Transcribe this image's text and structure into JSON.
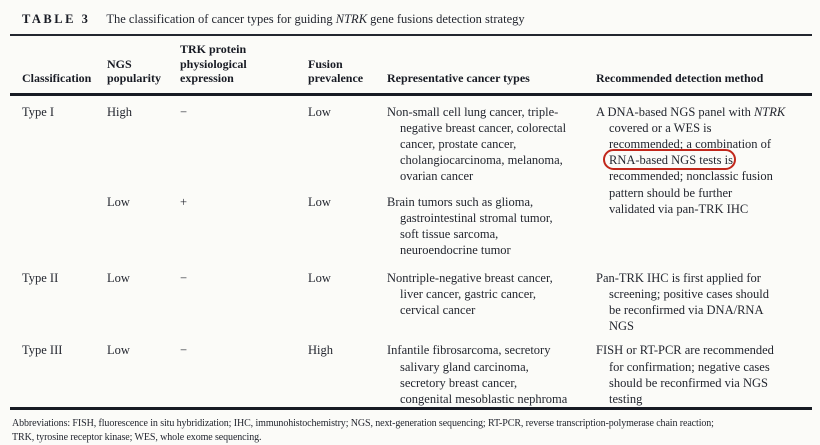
{
  "title": {
    "label": "TABLE 3",
    "prefix": "The classification of cancer types for guiding ",
    "italic": "NTRK",
    "suffix": " gene fusions detection strategy"
  },
  "table": {
    "headers": {
      "classification": "Classification",
      "ngs_popularity": "NGS\npopularity",
      "trk_expression": "TRK protein\nphysiological\nexpression",
      "fusion_prevalence": "Fusion\nprevalence",
      "representative": "Representative cancer types",
      "method": "Recommended detection method"
    },
    "rows": [
      {
        "classification": "Type I",
        "ngs_popularity": "High",
        "trk_expression": "−",
        "fusion_prevalence": "Low",
        "representative": "Non-small cell lung cancer, triple-\nnegative breast cancer, colorectal\ncancer, prostate cancer,\ncholangiocarcinoma, melanoma,\novarian cancer",
        "method_part1": "A DNA-based NGS panel with ",
        "method_italic": "NTRK",
        "method_part2": "\ncovered or a WES is\nrecommended; a combination of\n",
        "method_circled": "RNA-based NGS tests",
        "method_part3": " is\nrecommended; nonclassic fusion\npattern should be further\nvalidated via pan-TRK IHC"
      },
      {
        "classification": "",
        "ngs_popularity": "Low",
        "trk_expression": "+",
        "fusion_prevalence": "Low",
        "representative": "Brain tumors such as glioma,\ngastrointestinal stromal tumor,\nsoft tissue sarcoma,\nneuroendocrine tumor",
        "method": ""
      },
      {
        "classification": "Type II",
        "ngs_popularity": "Low",
        "trk_expression": "−",
        "fusion_prevalence": "Low",
        "representative": "Nontriple-negative breast cancer,\nliver cancer, gastric cancer,\ncervical cancer",
        "method": "Pan-TRK IHC is first applied for\nscreening; positive cases should\nbe reconfirmed via DNA/RNA\nNGS"
      },
      {
        "classification": "Type III",
        "ngs_popularity": "Low",
        "trk_expression": "−",
        "fusion_prevalence": "High",
        "representative": "Infantile fibrosarcoma, secretory\nsalivary gland carcinoma,\nsecretory breast cancer,\ncongenital mesoblastic nephroma",
        "method": "FISH or RT-PCR are recommended\nfor confirmation; negative cases\nshould be reconfirmed via NGS\ntesting"
      }
    ]
  },
  "annotation": {
    "type": "oval",
    "around_text": "RNA-based NGS tests",
    "color": "#c1271b"
  },
  "footnote": {
    "text": "Abbreviations: FISH, fluorescence in situ hybridization; IHC, immunohistochemistry; NGS, next-generation sequencing; RT-PCR, reverse transcription-polymerase chain reaction;\nTRK, tyrosine receptor kinase; WES, whole exome sequencing."
  },
  "colors": {
    "annotation_red": "#c1271b",
    "text": "#23262f",
    "background": "#fbfbf8"
  }
}
